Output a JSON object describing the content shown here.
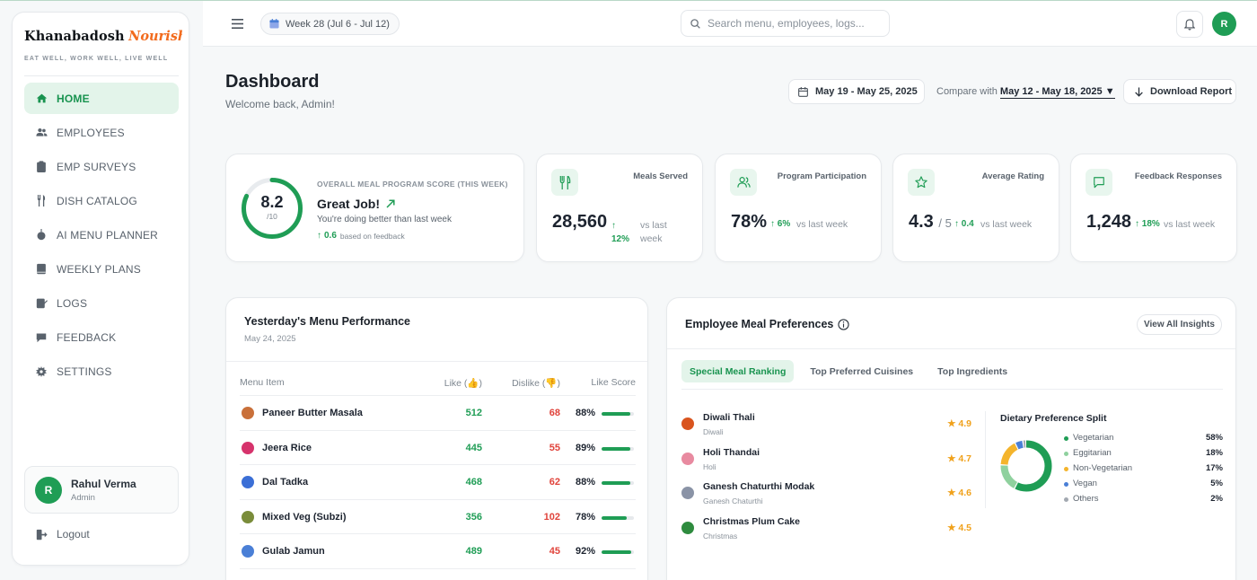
{
  "brand": {
    "name": "Khanabadosh",
    "accent": "Nourish",
    "tagline": "EAT WELL, WORK WELL, LIVE WELL"
  },
  "nav": [
    {
      "label": "HOME",
      "icon": "home-icon",
      "active": true
    },
    {
      "label": "EMPLOYEES",
      "icon": "users-icon"
    },
    {
      "label": "EMP SURVEYS",
      "icon": "clipboard-icon"
    },
    {
      "label": "DISH CATALOG",
      "icon": "utensils-icon"
    },
    {
      "label": "AI MENU PLANNER",
      "icon": "robot-icon"
    },
    {
      "label": "WEEKLY PLANS",
      "icon": "book-icon"
    },
    {
      "label": "LOGS",
      "icon": "log-icon"
    },
    {
      "label": "FEEDBACK",
      "icon": "chat-icon"
    },
    {
      "label": "SETTINGS",
      "icon": "gear-icon"
    }
  ],
  "user": {
    "initial": "R",
    "name": "Rahul Verma",
    "role": "Admin"
  },
  "logout_label": "Logout",
  "topbar": {
    "week_label": "Week 28 (Jul 6 - Jul 12)",
    "search_placeholder": "Search menu, employees, logs...",
    "avatar_initial": "R"
  },
  "header": {
    "title": "Dashboard",
    "subtitle": "Welcome back, Admin!",
    "date_range": "May 19 - May 25, 2025",
    "compare_label": "Compare with",
    "compare_range": "May 12 - May 18, 2025",
    "download_label": "Download Report"
  },
  "score": {
    "value": "8.2",
    "denominator": "/10",
    "value_num": 8.2,
    "max": 10,
    "label": "OVERALL MEAL PROGRAM SCORE (THIS WEEK)",
    "headline": "Great Job!",
    "text": "You're doing better than last week",
    "delta": "0.6",
    "delta_note": "based on feedback"
  },
  "metrics": {
    "meals": {
      "label": "Meals Served",
      "value": "28,560",
      "delta": "↑ 12%",
      "vs": "vs last week"
    },
    "participation": {
      "label": "Program Participation",
      "value": "78%",
      "delta": "↑ 6%",
      "vs": "vs last week"
    },
    "rating": {
      "label": "Average Rating",
      "value": "4.3",
      "sub": "/ 5",
      "delta": "↑ 0.4",
      "vs": "vs last week"
    },
    "feedback": {
      "label": "Feedback Responses",
      "value": "1,248",
      "delta": "↑ 18%",
      "vs": "vs last week"
    }
  },
  "menu_performance": {
    "title": "Yesterday's Menu Performance",
    "date": "May 24, 2025",
    "columns": [
      "Menu Item",
      "Like (👍)",
      "Dislike (👎)",
      "Like Score"
    ],
    "rows": [
      {
        "item": "Paneer Butter Masala",
        "likes": "512",
        "dislikes": "68",
        "score": "88%",
        "score_num": 88,
        "color": "#c9703a"
      },
      {
        "item": "Jeera Rice",
        "likes": "445",
        "dislikes": "55",
        "score": "89%",
        "score_num": 89,
        "color": "#d6336c"
      },
      {
        "item": "Dal Tadka",
        "likes": "468",
        "dislikes": "62",
        "score": "88%",
        "score_num": 88,
        "color": "#3b6fd6"
      },
      {
        "item": "Mixed Veg (Subzi)",
        "likes": "356",
        "dislikes": "102",
        "score": "78%",
        "score_num": 78,
        "color": "#7a8c3a"
      },
      {
        "item": "Gulab Jamun",
        "likes": "489",
        "dislikes": "45",
        "score": "92%",
        "score_num": 92,
        "color": "#4a7fd6"
      }
    ]
  },
  "preferences": {
    "title": "Employee Meal Preferences",
    "view_all": "View All Insights",
    "tabs": [
      "Special Meal Ranking",
      "Top Preferred Cuisines",
      "Top Ingredients"
    ],
    "festivals": [
      {
        "name": "Diwali Thali",
        "sub": "Diwali",
        "rating": "★ 4.9",
        "color": "#d9541e"
      },
      {
        "name": "Holi Thandai",
        "sub": "Holi",
        "rating": "★ 4.7",
        "color": "#e88aa0"
      },
      {
        "name": "Ganesh Chaturthi Modak",
        "sub": "Ganesh Chaturthi",
        "rating": "★ 4.6",
        "color": "#8a93a6"
      },
      {
        "name": "Christmas Plum Cake",
        "sub": "Christmas",
        "rating": "★ 4.5",
        "color": "#2e8b3e"
      }
    ],
    "split_title": "Dietary Preference Split",
    "split": [
      {
        "name": "Vegetarian",
        "value": "58%",
        "pct": 58,
        "color": "#1f9d55"
      },
      {
        "name": "Eggitarian",
        "value": "18%",
        "pct": 18,
        "color": "#8fd19e"
      },
      {
        "name": "Non-Vegetarian",
        "value": "17%",
        "pct": 17,
        "color": "#f4b42c"
      },
      {
        "name": "Vegan",
        "value": "5%",
        "pct": 5,
        "color": "#4a7fd6"
      },
      {
        "name": "Others",
        "value": "2%",
        "pct": 2,
        "color": "#a3a9b1"
      }
    ]
  }
}
